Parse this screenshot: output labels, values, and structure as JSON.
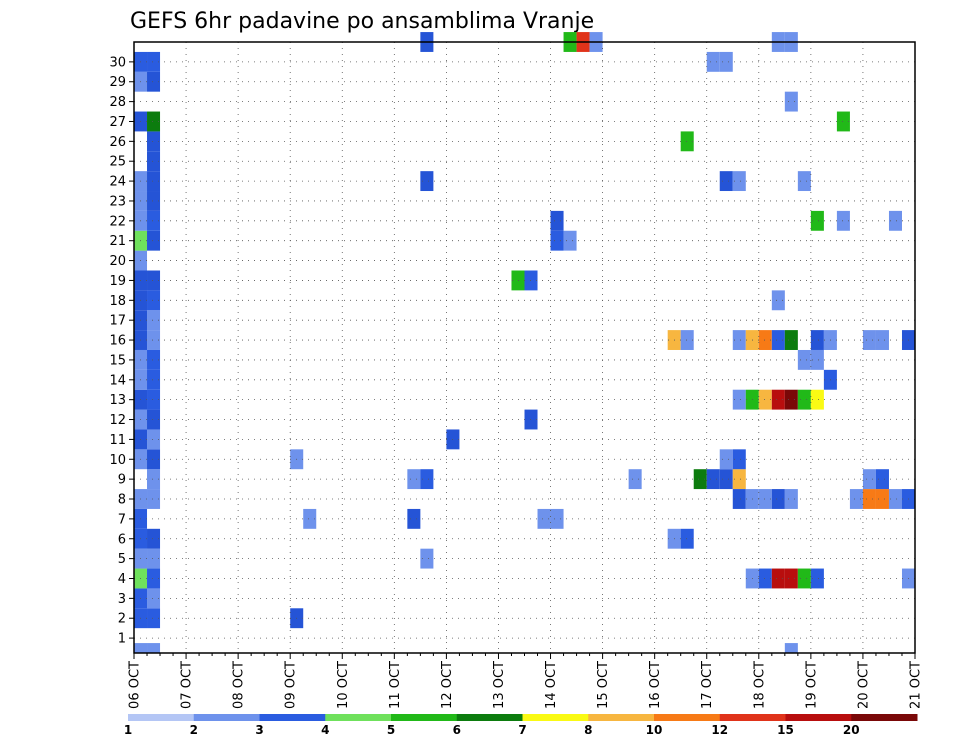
{
  "chart_data": {
    "type": "heatmap",
    "title": "GEFS 6hr padavine po ansamblima Vranje",
    "xlabel": "",
    "ylabel": "",
    "x_tick_labels": [
      "06 OCT",
      "07 OCT",
      "08 OCT",
      "09 OCT",
      "10 OCT",
      "11 OCT",
      "12 OCT",
      "13 OCT",
      "14 OCT",
      "15 OCT",
      "16 OCT",
      "17 OCT",
      "18 OCT",
      "19 OCT",
      "20 OCT",
      "21 OCT"
    ],
    "y_tick_labels": [
      "1",
      "2",
      "3",
      "4",
      "5",
      "6",
      "7",
      "8",
      "9",
      "10",
      "11",
      "12",
      "13",
      "14",
      "15",
      "16",
      "17",
      "18",
      "19",
      "20",
      "21",
      "22",
      "23",
      "24",
      "25",
      "26",
      "27",
      "28",
      "29",
      "30"
    ],
    "x_steps_per_day": 4,
    "x_range_steps": [
      0,
      60
    ],
    "y_range": [
      0,
      30
    ],
    "grid": true,
    "legend_placement": "bottom",
    "legend": {
      "boundaries": [
        "1",
        "2",
        "3",
        "4",
        "5",
        "6",
        "7",
        "8",
        "10",
        "12",
        "15",
        "20"
      ],
      "colors": [
        "#b4c6f5",
        "#6e92ec",
        "#2554d6",
        "#2a5ce0",
        "#6fe15c",
        "#21b918",
        "#0c7c0e",
        "#fafa14",
        "#f7b640",
        "#f77a16",
        "#e0331a",
        "#b80e0e",
        "#7a0808"
      ]
    },
    "cells": [
      {
        "step": 1,
        "member": 0,
        "level": 1
      },
      {
        "step": 2,
        "member": 0,
        "level": 1
      },
      {
        "step": 1,
        "member": 1,
        "level": 3
      },
      {
        "step": 2,
        "member": 1,
        "level": 3
      },
      {
        "step": 1,
        "member": 2,
        "level": 3
      },
      {
        "step": 2,
        "member": 2,
        "level": 1
      },
      {
        "step": 1,
        "member": 3,
        "level": 4
      },
      {
        "step": 2,
        "member": 3,
        "level": 3
      },
      {
        "step": 1,
        "member": 4,
        "level": 1
      },
      {
        "step": 2,
        "member": 4,
        "level": 1
      },
      {
        "step": 1,
        "member": 5,
        "level": 3
      },
      {
        "step": 2,
        "member": 5,
        "level": 2
      },
      {
        "step": 1,
        "member": 6,
        "level": 3
      },
      {
        "step": 1,
        "member": 7,
        "level": 1
      },
      {
        "step": 2,
        "member": 7,
        "level": 1
      },
      {
        "step": 2,
        "member": 8,
        "level": 1
      },
      {
        "step": 1,
        "member": 9,
        "level": 1
      },
      {
        "step": 2,
        "member": 9,
        "level": 2
      },
      {
        "step": 1,
        "member": 10,
        "level": 2
      },
      {
        "step": 2,
        "member": 10,
        "level": 1
      },
      {
        "step": 1,
        "member": 11,
        "level": 1
      },
      {
        "step": 2,
        "member": 11,
        "level": 2
      },
      {
        "step": 1,
        "member": 12,
        "level": 2
      },
      {
        "step": 2,
        "member": 12,
        "level": 3
      },
      {
        "step": 1,
        "member": 13,
        "level": 1
      },
      {
        "step": 2,
        "member": 13,
        "level": 3
      },
      {
        "step": 1,
        "member": 14,
        "level": 1
      },
      {
        "step": 2,
        "member": 14,
        "level": 3
      },
      {
        "step": 1,
        "member": 15,
        "level": 2
      },
      {
        "step": 2,
        "member": 15,
        "level": 1
      },
      {
        "step": 1,
        "member": 16,
        "level": 2
      },
      {
        "step": 2,
        "member": 16,
        "level": 1
      },
      {
        "step": 1,
        "member": 17,
        "level": 2
      },
      {
        "step": 2,
        "member": 17,
        "level": 3
      },
      {
        "step": 1,
        "member": 18,
        "level": 2
      },
      {
        "step": 2,
        "member": 18,
        "level": 2
      },
      {
        "step": 1,
        "member": 19,
        "level": 1
      },
      {
        "step": 1,
        "member": 20,
        "level": 4
      },
      {
        "step": 2,
        "member": 20,
        "level": 2
      },
      {
        "step": 1,
        "member": 21,
        "level": 1
      },
      {
        "step": 2,
        "member": 21,
        "level": 3
      },
      {
        "step": 1,
        "member": 22,
        "level": 1
      },
      {
        "step": 2,
        "member": 22,
        "level": 2
      },
      {
        "step": 1,
        "member": 23,
        "level": 1
      },
      {
        "step": 2,
        "member": 23,
        "level": 2
      },
      {
        "step": 2,
        "member": 24,
        "level": 2
      },
      {
        "step": 2,
        "member": 25,
        "level": 2
      },
      {
        "step": 1,
        "member": 26,
        "level": 2
      },
      {
        "step": 2,
        "member": 26,
        "level": 6
      },
      {
        "step": 1,
        "member": 28,
        "level": 1
      },
      {
        "step": 2,
        "member": 28,
        "level": 2
      },
      {
        "step": 1,
        "member": 29,
        "level": 3
      },
      {
        "step": 2,
        "member": 29,
        "level": 3
      },
      {
        "step": 13,
        "member": 1,
        "level": 2
      },
      {
        "step": 13,
        "member": 9,
        "level": 1
      },
      {
        "step": 14,
        "member": 6,
        "level": 1
      },
      {
        "step": 22,
        "member": 6,
        "level": 2
      },
      {
        "step": 22,
        "member": 8,
        "level": 1
      },
      {
        "step": 23,
        "member": 8,
        "level": 3
      },
      {
        "step": 23,
        "member": 4,
        "level": 1
      },
      {
        "step": 23,
        "member": 23,
        "level": 2
      },
      {
        "step": 23,
        "member": 30,
        "level": 2
      },
      {
        "step": 25,
        "member": 10,
        "level": 2
      },
      {
        "step": 30,
        "member": 18,
        "level": 5
      },
      {
        "step": 31,
        "member": 18,
        "level": 3
      },
      {
        "step": 31,
        "member": 11,
        "level": 2
      },
      {
        "step": 32,
        "member": 6,
        "level": 1
      },
      {
        "step": 33,
        "member": 6,
        "level": 1
      },
      {
        "step": 33,
        "member": 20,
        "level": 3
      },
      {
        "step": 34,
        "member": 20,
        "level": 1
      },
      {
        "step": 33,
        "member": 21,
        "level": 2
      },
      {
        "step": 34,
        "member": 30,
        "level": 5
      },
      {
        "step": 35,
        "member": 30,
        "level": 10
      },
      {
        "step": 36,
        "member": 30,
        "level": 1
      },
      {
        "step": 39,
        "member": 8,
        "level": 1
      },
      {
        "step": 42,
        "member": 15,
        "level": 8
      },
      {
        "step": 43,
        "member": 15,
        "level": 1
      },
      {
        "step": 42,
        "member": 5,
        "level": 1
      },
      {
        "step": 43,
        "member": 5,
        "level": 3
      },
      {
        "step": 43,
        "member": 25,
        "level": 5
      },
      {
        "step": 44,
        "member": 8,
        "level": 6
      },
      {
        "step": 45,
        "member": 8,
        "level": 2
      },
      {
        "step": 46,
        "member": 8,
        "level": 2
      },
      {
        "step": 47,
        "member": 8,
        "level": 8
      },
      {
        "step": 45,
        "member": 29,
        "level": 1
      },
      {
        "step": 46,
        "member": 29,
        "level": 1
      },
      {
        "step": 46,
        "member": 23,
        "level": 2
      },
      {
        "step": 47,
        "member": 23,
        "level": 1
      },
      {
        "step": 46,
        "member": 9,
        "level": 1
      },
      {
        "step": 47,
        "member": 9,
        "level": 3
      },
      {
        "step": 47,
        "member": 7,
        "level": 2
      },
      {
        "step": 48,
        "member": 7,
        "level": 1
      },
      {
        "step": 47,
        "member": 12,
        "level": 1
      },
      {
        "step": 48,
        "member": 12,
        "level": 5
      },
      {
        "step": 49,
        "member": 12,
        "level": 8
      },
      {
        "step": 50,
        "member": 12,
        "level": 11
      },
      {
        "step": 51,
        "member": 12,
        "level": 12
      },
      {
        "step": 52,
        "member": 12,
        "level": 5
      },
      {
        "step": 53,
        "member": 12,
        "level": 7
      },
      {
        "step": 47,
        "member": 15,
        "level": 1
      },
      {
        "step": 48,
        "member": 15,
        "level": 8
      },
      {
        "step": 49,
        "member": 15,
        "level": 9
      },
      {
        "step": 50,
        "member": 15,
        "level": 3
      },
      {
        "step": 51,
        "member": 15,
        "level": 6
      },
      {
        "step": 53,
        "member": 15,
        "level": 2
      },
      {
        "step": 54,
        "member": 15,
        "level": 1
      },
      {
        "step": 48,
        "member": 3,
        "level": 1
      },
      {
        "step": 49,
        "member": 3,
        "level": 3
      },
      {
        "step": 50,
        "member": 3,
        "level": 11
      },
      {
        "step": 51,
        "member": 3,
        "level": 11
      },
      {
        "step": 52,
        "member": 3,
        "level": 5
      },
      {
        "step": 53,
        "member": 3,
        "level": 3
      },
      {
        "step": 49,
        "member": 7,
        "level": 1
      },
      {
        "step": 50,
        "member": 7,
        "level": 2
      },
      {
        "step": 51,
        "member": 7,
        "level": 1
      },
      {
        "step": 50,
        "member": 17,
        "level": 1
      },
      {
        "step": 51,
        "member": 0,
        "level": 1
      },
      {
        "step": 50,
        "member": 30,
        "level": 1
      },
      {
        "step": 51,
        "member": 30,
        "level": 1
      },
      {
        "step": 51,
        "member": 27,
        "level": 1
      },
      {
        "step": 52,
        "member": 23,
        "level": 1
      },
      {
        "step": 52,
        "member": 14,
        "level": 1
      },
      {
        "step": 53,
        "member": 14,
        "level": 1
      },
      {
        "step": 54,
        "member": 13,
        "level": 3
      },
      {
        "step": 53,
        "member": 21,
        "level": 5
      },
      {
        "step": 55,
        "member": 26,
        "level": 5
      },
      {
        "step": 55,
        "member": 21,
        "level": 1
      },
      {
        "step": 56,
        "member": 7,
        "level": 1
      },
      {
        "step": 57,
        "member": 7,
        "level": 9
      },
      {
        "step": 58,
        "member": 7,
        "level": 9
      },
      {
        "step": 59,
        "member": 7,
        "level": 1
      },
      {
        "step": 60,
        "member": 7,
        "level": 3
      },
      {
        "step": 57,
        "member": 8,
        "level": 1
      },
      {
        "step": 58,
        "member": 8,
        "level": 3
      },
      {
        "step": 57,
        "member": 15,
        "level": 1
      },
      {
        "step": 58,
        "member": 15,
        "level": 1
      },
      {
        "step": 60,
        "member": 15,
        "level": 2
      },
      {
        "step": 59,
        "member": 21,
        "level": 1
      },
      {
        "step": 60,
        "member": 3,
        "level": 1
      }
    ]
  }
}
